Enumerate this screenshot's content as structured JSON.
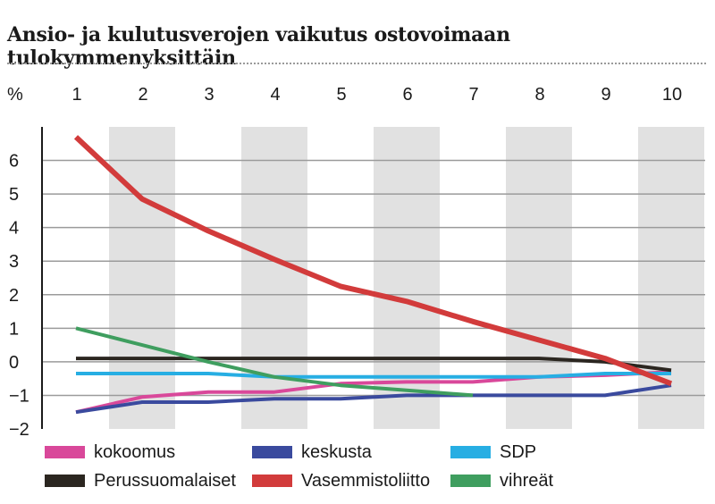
{
  "chart_data": {
    "type": "line",
    "title": "Ansio- ja kulutusverojen vaikutus ostovoimaan tulokymmenyksittäin",
    "ylabel": "%",
    "x": [
      1,
      2,
      3,
      4,
      5,
      6,
      7,
      8,
      9,
      10
    ],
    "x_tick_labels": [
      "1",
      "2",
      "3",
      "4",
      "5",
      "6",
      "7",
      "8",
      "9",
      "10"
    ],
    "ylim": [
      -2,
      7
    ],
    "y_ticks": [
      -2,
      -1,
      0,
      1,
      2,
      3,
      4,
      5,
      6
    ],
    "y_tick_labels": [
      "−2",
      "−1",
      "0",
      "1",
      "2",
      "3",
      "4",
      "5",
      "6"
    ],
    "grid": true,
    "legend_position": "bottom",
    "series": [
      {
        "name": "kokoomus",
        "color": "#d9489a",
        "values": [
          -1.5,
          -1.05,
          -0.9,
          -0.9,
          -0.65,
          -0.6,
          -0.6,
          -0.45,
          -0.4,
          -0.3
        ]
      },
      {
        "name": "keskusta",
        "color": "#3a4a9e",
        "values": [
          -1.5,
          -1.2,
          -1.2,
          -1.1,
          -1.1,
          -1.0,
          -1.0,
          -1.0,
          -1.0,
          -0.7
        ]
      },
      {
        "name": "SDP",
        "color": "#27aee3",
        "values": [
          -0.35,
          -0.35,
          -0.35,
          -0.45,
          -0.45,
          -0.45,
          -0.45,
          -0.45,
          -0.35,
          -0.35
        ]
      },
      {
        "name": "Perussuomalaiset",
        "color": "#2b2620",
        "values": [
          0.1,
          0.1,
          0.1,
          0.1,
          0.1,
          0.1,
          0.1,
          0.1,
          0.0,
          -0.25
        ]
      },
      {
        "name": "Vasemmistoliitto",
        "color": "#d23b3b",
        "values": [
          6.7,
          4.85,
          3.9,
          3.05,
          2.25,
          1.8,
          1.2,
          0.65,
          0.1,
          -0.65
        ]
      },
      {
        "name": "vihreät",
        "color": "#3f9e5f",
        "values": [
          1.0,
          0.5,
          0.0,
          -0.45,
          -0.7,
          -0.85,
          -1.0,
          null,
          null,
          null
        ]
      }
    ]
  }
}
